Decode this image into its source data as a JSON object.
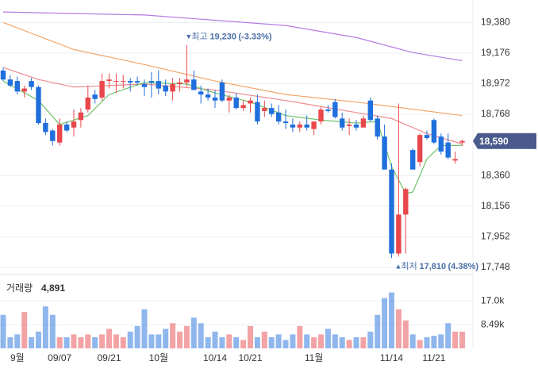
{
  "chart_data": {
    "type": "candlestick",
    "categories": [
      null,
      null,
      "9월",
      null,
      null,
      null,
      null,
      null,
      "09/07",
      null,
      null,
      null,
      null,
      null,
      null,
      "09/21",
      null,
      null,
      null,
      null,
      null,
      null,
      "10월",
      null,
      null,
      null,
      null,
      null,
      null,
      null,
      "10/14",
      null,
      null,
      null,
      null,
      "10/21",
      null,
      null,
      null,
      null,
      null,
      null,
      null,
      null,
      "11월",
      null,
      null,
      null,
      null,
      null,
      null,
      null,
      null,
      null,
      null,
      "11/14",
      null,
      null,
      null,
      null,
      null,
      "11/21",
      null,
      null,
      null,
      null
    ],
    "open": [
      19060,
      19000,
      18990,
      18920,
      18990,
      18950,
      18710,
      18660,
      18580,
      18700,
      18680,
      18730,
      18800,
      18900,
      18880,
      18990,
      18990,
      18990,
      18990,
      18990,
      18970,
      18990,
      18990,
      18960,
      18920,
      18970,
      18980,
      19000,
      18920,
      18900,
      18880,
      18980,
      18860,
      18880,
      18810,
      18840,
      18850,
      18790,
      18810,
      18780,
      18720,
      18700,
      18680,
      18700,
      18670,
      18720,
      18800,
      18850,
      18740,
      18690,
      18700,
      18680,
      18860,
      18740,
      18620,
      18400,
      17840,
      18100,
      18530,
      18450,
      18630,
      18730,
      18620,
      18580,
      18460,
      18580
    ],
    "high": [
      19080,
      19030,
      19020,
      18960,
      19010,
      18960,
      18740,
      18670,
      18740,
      18720,
      18800,
      18810,
      18960,
      18930,
      19040,
      19040,
      19040,
      19030,
      19010,
      19020,
      19000,
      19050,
      19060,
      19000,
      19010,
      19010,
      19230,
      19060,
      18960,
      18940,
      18930,
      19000,
      18900,
      18910,
      18860,
      18880,
      18900,
      18860,
      18840,
      18830,
      18800,
      18740,
      18720,
      18760,
      18720,
      18820,
      18830,
      18870,
      18780,
      18740,
      18730,
      18760,
      18880,
      18760,
      18700,
      18440,
      18840,
      18280,
      18540,
      18640,
      18660,
      18740,
      18640,
      18640,
      18520,
      18600
    ],
    "low": [
      18990,
      18950,
      18900,
      18880,
      18930,
      18700,
      18630,
      18560,
      18560,
      18650,
      18620,
      18680,
      18780,
      18840,
      18860,
      18940,
      18910,
      18940,
      18920,
      18960,
      18890,
      18880,
      18900,
      18890,
      18860,
      18920,
      18950,
      18930,
      18840,
      18860,
      18810,
      18850,
      18780,
      18800,
      18790,
      18780,
      18700,
      18750,
      18750,
      18700,
      18670,
      18650,
      18650,
      18660,
      18630,
      18700,
      18780,
      18740,
      18660,
      18630,
      18660,
      18680,
      18720,
      18600,
      18400,
      17810,
      17820,
      17840,
      18400,
      18420,
      18600,
      18570,
      18500,
      18470,
      18440,
      18560
    ],
    "close": [
      19000,
      18960,
      18920,
      18940,
      18950,
      18710,
      18650,
      18590,
      18700,
      18660,
      18720,
      18780,
      18880,
      18870,
      18990,
      19000,
      18990,
      18990,
      18980,
      18980,
      18950,
      18980,
      18940,
      18920,
      18970,
      18980,
      19000,
      18930,
      18900,
      18880,
      18860,
      18860,
      18880,
      18810,
      18830,
      18860,
      18720,
      18810,
      18770,
      18720,
      18710,
      18680,
      18700,
      18680,
      18720,
      18800,
      18790,
      18750,
      18680,
      18700,
      18680,
      18740,
      18730,
      18620,
      18400,
      17840,
      18100,
      18270,
      18400,
      18630,
      18610,
      18580,
      18520,
      18480,
      18470,
      18590
    ],
    "up_color": "#e8474c",
    "down_color": "#1f6fdc",
    "ylim": [
      17700,
      19530
    ],
    "yticks": [
      {
        "value": 19380,
        "label": "19,380"
      },
      {
        "value": 19176,
        "label": "19,176"
      },
      {
        "value": 18972,
        "label": "18,972"
      },
      {
        "value": 18768,
        "label": "18,768"
      },
      {
        "value": 18360,
        "label": "18,360"
      },
      {
        "value": 18156,
        "label": "18,156"
      },
      {
        "value": 17952,
        "label": "17,952"
      },
      {
        "value": 17748,
        "label": "17,748"
      }
    ],
    "grid": true,
    "moving_averages": [
      {
        "color": "#b57be0",
        "x": [
          0,
          20,
          40,
          50,
          58,
          65
        ],
        "values": [
          19450,
          19430,
          19360,
          19280,
          19180,
          19125
        ]
      },
      {
        "color": "#f2a66a",
        "x": [
          0,
          10,
          20,
          30,
          40,
          50,
          55,
          65
        ],
        "values": [
          19380,
          19200,
          19100,
          18990,
          18900,
          18850,
          18820,
          18760
        ]
      },
      {
        "color": "#ee8a8e",
        "x": [
          0,
          5,
          10,
          20,
          30,
          40,
          50,
          55,
          60,
          65
        ],
        "values": [
          19080,
          19000,
          18950,
          18970,
          18930,
          18860,
          18780,
          18740,
          18640,
          18570
        ]
      },
      {
        "color": "#6cc46a",
        "x": [
          0,
          5,
          8,
          12,
          15,
          20,
          26,
          30,
          35,
          40,
          45,
          50,
          53,
          55,
          57,
          58,
          60,
          62,
          65
        ],
        "values": [
          18990,
          18860,
          18700,
          18760,
          18900,
          18980,
          18970,
          18910,
          18850,
          18760,
          18730,
          18710,
          18720,
          18420,
          18240,
          18250,
          18470,
          18560,
          18560
        ]
      }
    ],
    "high_annotation": {
      "text": "최고",
      "value": 19230,
      "value_label": "19,230",
      "change": "(-3.33%)"
    },
    "low_annotation": {
      "text": "최저",
      "value": 17810,
      "value_label": "17,810",
      "change": "(4.38%)"
    },
    "current_price": {
      "value": 18590,
      "label": "18,590",
      "color": "#4a5a8c"
    },
    "volume": {
      "title": "거래량",
      "last": 4891,
      "last_label": "4,891",
      "values": [
        12000,
        4000,
        5000,
        13000,
        4000,
        6000,
        15000,
        12000,
        4000,
        4000,
        5000,
        4000,
        5000,
        4000,
        5000,
        7000,
        5000,
        4000,
        6000,
        8000,
        14000,
        5000,
        5000,
        7000,
        9000,
        6000,
        8000,
        11000,
        9000,
        4000,
        6000,
        4000,
        5000,
        4000,
        3000,
        8000,
        4000,
        6000,
        4000,
        5000,
        3000,
        5000,
        8000,
        5000,
        4000,
        5000,
        7000,
        5000,
        4000,
        3000,
        4000,
        4000,
        6000,
        12000,
        18000,
        20000,
        14000,
        10000,
        5000,
        3000,
        4000,
        4500,
        5000,
        9000,
        6000,
        6000
      ],
      "ylim": [
        0,
        25000
      ],
      "yticks": [
        {
          "value": 17000,
          "label": "17.0k"
        },
        {
          "value": 8490,
          "label": "8.49k"
        }
      ]
    }
  }
}
